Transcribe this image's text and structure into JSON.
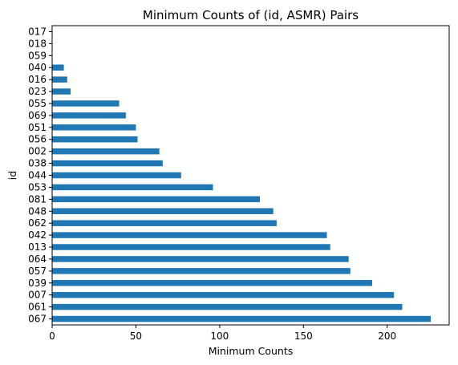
{
  "chart_data": {
    "type": "bar",
    "orientation": "horizontal",
    "title": "Minimum Counts of (id, ASMR) Pairs",
    "xlabel": "Minimum Counts",
    "ylabel": "id",
    "xlim": [
      0,
      237
    ],
    "xticks": [
      0,
      50,
      100,
      150,
      200
    ],
    "grid": false,
    "legend": "none",
    "bar_color": "#1f77b4",
    "categories": [
      "067",
      "061",
      "007",
      "039",
      "057",
      "064",
      "013",
      "042",
      "062",
      "048",
      "081",
      "053",
      "044",
      "038",
      "002",
      "056",
      "051",
      "069",
      "055",
      "023",
      "016",
      "040",
      "059",
      "018",
      "017"
    ],
    "values": [
      226,
      209,
      204,
      191,
      178,
      177,
      166,
      164,
      134,
      132,
      124,
      96,
      77,
      66,
      64,
      51,
      50,
      44,
      40,
      11,
      9,
      7,
      0,
      0,
      0
    ]
  }
}
